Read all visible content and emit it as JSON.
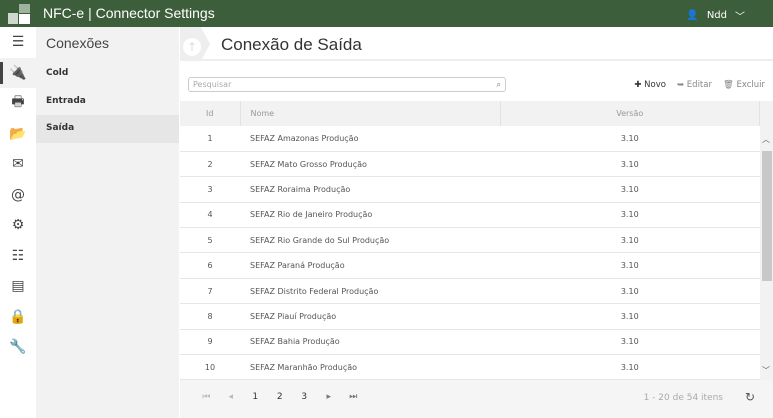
{
  "app": {
    "title": "NFC-e | Connector Settings",
    "user": "Ndd",
    "colors": {
      "header": "#3d5e3a"
    }
  },
  "rail": {
    "icons": [
      "menu-icon",
      "plug-icon",
      "printer-icon",
      "folder-icon",
      "envelope-icon",
      "at-icon",
      "gear-icon",
      "sliders-icon",
      "server-icon",
      "lock-icon",
      "wrench-icon"
    ],
    "active": "plug-icon"
  },
  "submenu": {
    "title": "Conexões",
    "items": [
      {
        "label": "Cold"
      },
      {
        "label": "Entrada"
      },
      {
        "label": "Saída",
        "selected": true
      }
    ]
  },
  "main": {
    "title": "Conexão de Saída",
    "search_placeholder": "Pesquisar",
    "actions": {
      "new": "Novo",
      "edit": "Editar",
      "delete": "Excluir"
    }
  },
  "table": {
    "columns": [
      "Id",
      "Nome",
      "Versão"
    ],
    "rows": [
      [
        "1",
        "SEFAZ Amazonas Produção",
        "3.10"
      ],
      [
        "2",
        "SEFAZ Mato Grosso Produção",
        "3.10"
      ],
      [
        "3",
        "SEFAZ Roraima Produção",
        "3.10"
      ],
      [
        "4",
        "SEFAZ Rio de Janeiro Produção",
        "3.10"
      ],
      [
        "5",
        "SEFAZ Rio Grande do Sul Produção",
        "3.10"
      ],
      [
        "6",
        "SEFAZ Paraná Produção",
        "3.10"
      ],
      [
        "7",
        "SEFAZ Distrito Federal Produção",
        "3.10"
      ],
      [
        "8",
        "SEFAZ Piauí Produção",
        "3.10"
      ],
      [
        "9",
        "SEFAZ Bahia Produção",
        "3.10"
      ],
      [
        "10",
        "SEFAZ Maranhão Produção",
        "3.10"
      ]
    ]
  },
  "pager": {
    "pages": [
      "1",
      "2",
      "3"
    ],
    "current": "1",
    "info": "1 - 20 de 54 itens"
  }
}
